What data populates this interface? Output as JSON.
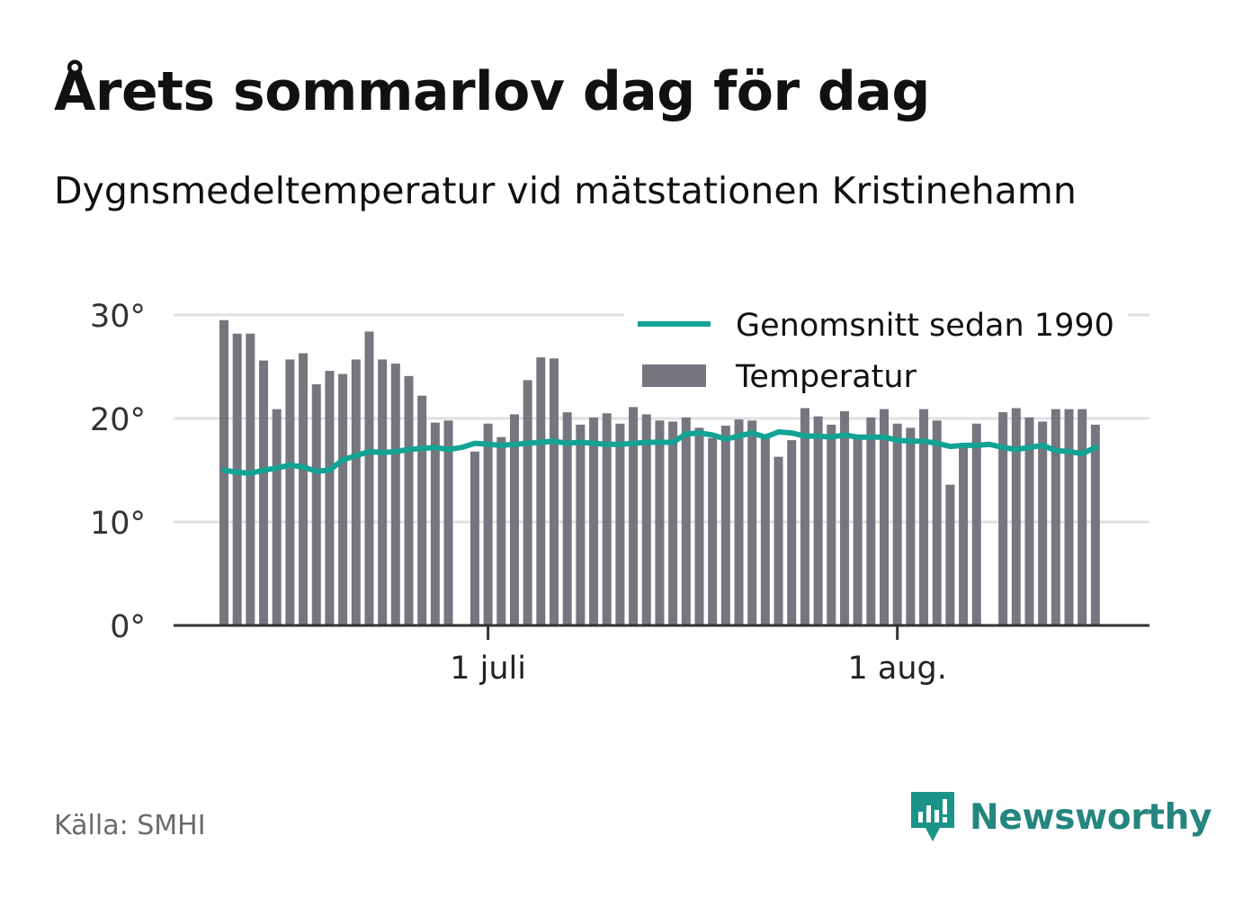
{
  "title": "Årets sommarlov dag för dag",
  "subtitle": "Dygnsmedeltemperatur vid mätstationen Kristinehamn",
  "source": "Källa: SMHI",
  "brand": {
    "name": "Newsworthy",
    "color": "#1a9488",
    "icon": "newsworthy-logo-icon"
  },
  "colors": {
    "bar": "#76767e",
    "bar_normal_excess": "#e2e2e4",
    "line": "#12a394",
    "grid": "#e0e0e0",
    "axis": "#333333"
  },
  "chart_data": {
    "type": "bar",
    "ylim": [
      0,
      30
    ],
    "yticks": [
      {
        "value": 0,
        "label": "0°"
      },
      {
        "value": 10,
        "label": "10°"
      },
      {
        "value": 20,
        "label": "20°"
      },
      {
        "value": 30,
        "label": "30°"
      }
    ],
    "first_date": "2019-06-11",
    "xticks": [
      {
        "date": "2019-07-01",
        "label": "1 juli"
      },
      {
        "date": "2019-08-01",
        "label": "1 aug."
      }
    ],
    "legend": {
      "placement": "top-right",
      "line_label": "Genomsnitt sedan 1990",
      "bar_label": "Temperatur"
    },
    "temperature": [
      29.5,
      28.2,
      28.2,
      25.6,
      20.9,
      25.7,
      26.3,
      23.3,
      24.6,
      24.3,
      25.7,
      28.4,
      25.7,
      25.3,
      24.1,
      22.2,
      19.6,
      19.8,
      null,
      16.8,
      19.5,
      18.2,
      20.4,
      23.7,
      25.9,
      25.8,
      20.6,
      19.4,
      20.1,
      20.5,
      19.5,
      21.1,
      20.4,
      19.8,
      19.7,
      20.1,
      19.1,
      18.1,
      19.3,
      19.9,
      19.8,
      18.2,
      16.3,
      17.9,
      21.0,
      20.2,
      19.4,
      20.7,
      18.3,
      20.1,
      20.9,
      19.5,
      19.1,
      20.9,
      19.8,
      13.6,
      17.5,
      19.5,
      null,
      20.6,
      21.0,
      20.1,
      19.7,
      20.9,
      20.9,
      20.9,
      19.4
    ],
    "normal_since_1990": [
      15.0,
      14.8,
      14.7,
      15.0,
      15.2,
      15.5,
      15.3,
      14.9,
      15.0,
      16.0,
      16.4,
      16.8,
      16.7,
      16.8,
      17.0,
      17.1,
      17.2,
      17.0,
      17.2,
      17.6,
      17.5,
      17.4,
      17.5,
      17.6,
      17.7,
      17.8,
      17.6,
      17.7,
      17.6,
      17.5,
      17.5,
      17.6,
      17.7,
      17.7,
      17.7,
      18.5,
      18.6,
      18.4,
      18.0,
      18.3,
      18.6,
      18.2,
      18.7,
      18.6,
      18.3,
      18.3,
      18.2,
      18.4,
      18.2,
      18.2,
      18.2,
      17.9,
      17.8,
      17.8,
      17.6,
      17.3,
      17.4,
      17.4,
      17.5,
      17.2,
      17.0,
      17.2,
      17.4,
      16.9,
      16.8,
      16.6,
      17.2
    ]
  }
}
